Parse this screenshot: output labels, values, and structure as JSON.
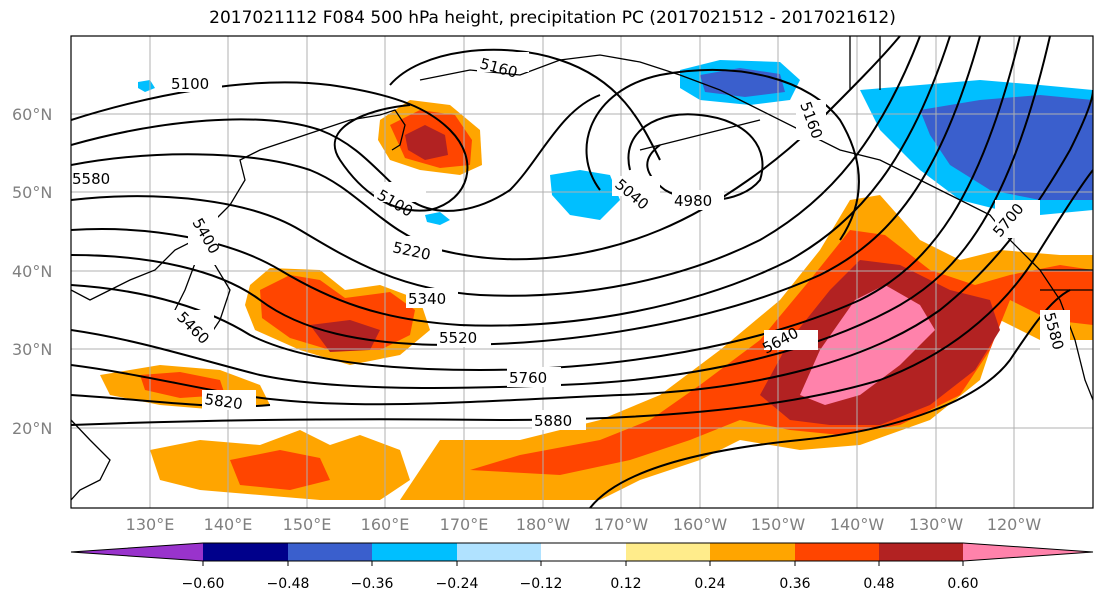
{
  "title": "2017021112 F084 500 hPa height, precipitation PC (2017021512 - 2017021612)",
  "lat_labels": [
    "60°N",
    "50°N",
    "40°N",
    "30°N",
    "20°N"
  ],
  "lon_labels": [
    "130°E",
    "140°E",
    "150°E",
    "160°E",
    "170°E",
    "180°W",
    "170°W",
    "160°W",
    "150°W",
    "140°W",
    "130°W",
    "120°W"
  ],
  "height_contour_labels": [
    "5100",
    "5160",
    "5100",
    "4980",
    "5040",
    "5160",
    "5220",
    "5340",
    "5520",
    "5760",
    "5880",
    "5820",
    "5640",
    "5700",
    "5400",
    "5460",
    "5580",
    "5580"
  ],
  "colorbar": {
    "ticks": [
      "−0.60",
      "−0.48",
      "−0.36",
      "−0.24",
      "−0.12",
      "0.12",
      "0.24",
      "0.36",
      "0.48",
      "0.60"
    ],
    "colors": [
      "#9933cc",
      "#00008b",
      "#3a5fcd",
      "#00bfff",
      "#b0e2ff",
      "#ffffff",
      "#ffec8b",
      "#ffa500",
      "#ff4500",
      "#b22222",
      "#ff82ab"
    ]
  }
}
